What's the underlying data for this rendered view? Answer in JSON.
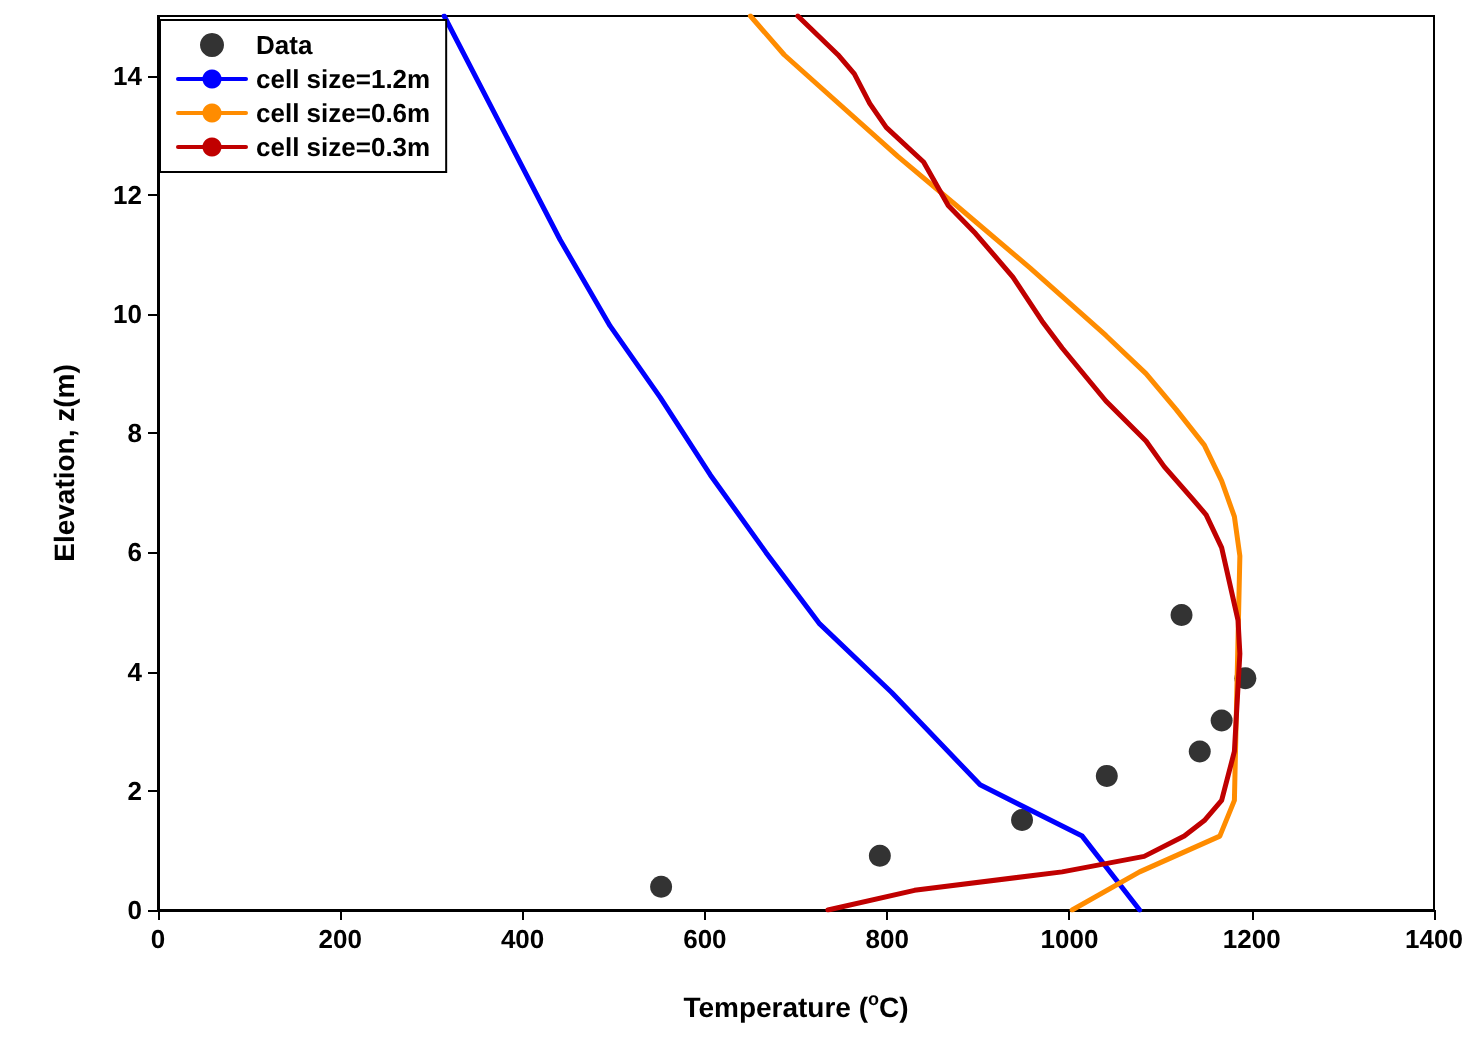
{
  "chart_data": {
    "type": "line",
    "xlabel": "Temperature ($^{o}$C)",
    "ylabel": "Elevation, z(m)",
    "xlim": [
      0,
      1400
    ],
    "xticks": [
      0,
      200,
      400,
      600,
      800,
      1000,
      1200,
      1400
    ],
    "ylim": [
      0,
      15
    ],
    "yticks": [
      0,
      2,
      4,
      6,
      8,
      10,
      12,
      14
    ],
    "grid": false,
    "legend": "top left",
    "line_style": "solid",
    "series": [
      {
        "name": "Data",
        "type": "scatter",
        "marker": "circle",
        "color": "#000000",
        "x": [
          552,
          792,
          948,
          1041,
          1143,
          1167,
          1193,
          1123
        ],
        "values": [
          0.39,
          0.91,
          1.51,
          2.25,
          2.66,
          3.18,
          3.89,
          4.95
        ]
      },
      {
        "name": "cell size=1.2m",
        "color": "#0000ff",
        "marker": "none",
        "x": [
          1077,
          1014,
          902,
          805,
          726,
          667,
          606,
          551,
          496,
          441,
          314
        ],
        "values": [
          0,
          1.24,
          2.1,
          3.65,
          4.8,
          6.0,
          7.3,
          8.6,
          9.8,
          11.25,
          15
        ]
      },
      {
        "name": "cell size=0.6m",
        "color": "#ff8c00",
        "marker": "none",
        "x": [
          1003,
          1077,
          1165,
          1181,
          1187,
          1181,
          1167,
          1148,
          1117,
          1084,
          1040,
          957,
          876,
          812,
          687,
          650
        ],
        "values": [
          0,
          0.64,
          1.24,
          1.84,
          5.94,
          6.6,
          7.2,
          7.8,
          8.4,
          9.0,
          9.64,
          10.77,
          11.82,
          12.64,
          14.35,
          15
        ]
      },
      {
        "name": "cell size=0.3m",
        "color": "#c00000",
        "marker": "none",
        "x": [
          735,
          830,
          992,
          1082,
          1126,
          1148,
          1167,
          1181,
          1187,
          1185,
          1167,
          1150,
          1135,
          1104,
          1084,
          1040,
          992,
          970,
          938,
          897,
          867,
          840,
          799,
          781,
          764,
          746,
          702
        ],
        "values": [
          0,
          0.33,
          0.64,
          0.9,
          1.24,
          1.5,
          1.84,
          2.66,
          4.3,
          4.86,
          6.08,
          6.63,
          6.9,
          7.44,
          7.87,
          8.54,
          9.43,
          9.88,
          10.62,
          11.35,
          11.82,
          12.55,
          13.13,
          13.53,
          14.03,
          14.35,
          15
        ]
      }
    ]
  }
}
